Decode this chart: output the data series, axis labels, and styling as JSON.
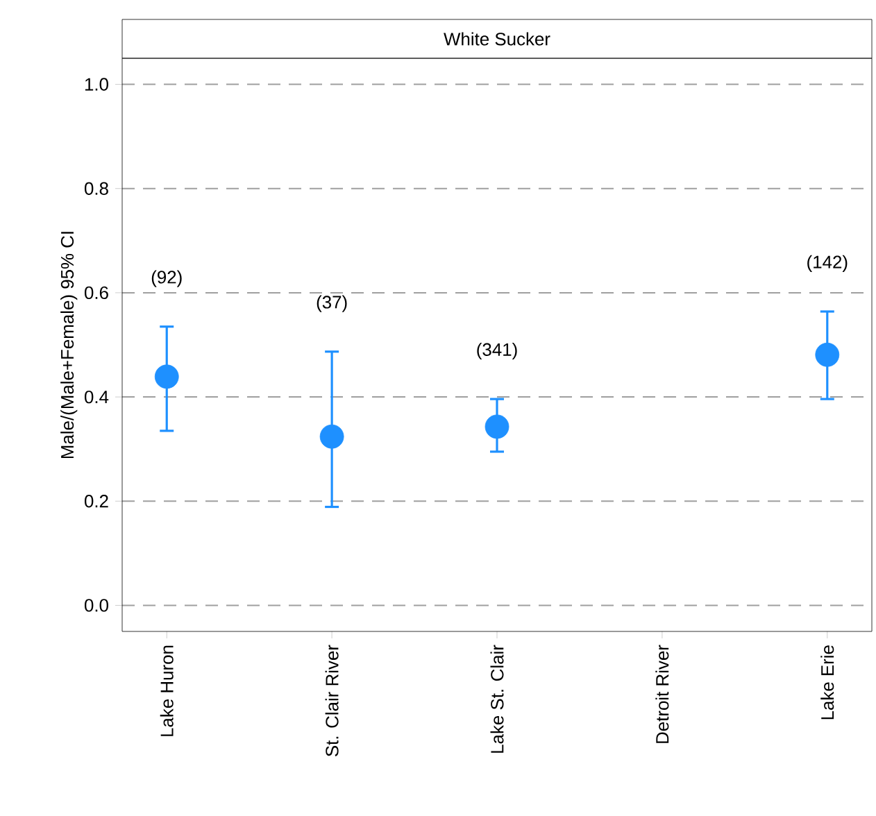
{
  "chart_data": {
    "type": "scatter",
    "title": "White Sucker",
    "ylabel": "Male/(Male+Female) 95% CI",
    "categories": [
      "Lake Huron",
      "St. Clair River",
      "Lake St. Clair",
      "Detroit River",
      "Lake Erie"
    ],
    "values": [
      0.439,
      0.324,
      0.343,
      null,
      0.481
    ],
    "errors": [
      [
        0.335,
        0.535
      ],
      [
        0.189,
        0.487
      ],
      [
        0.295,
        0.396
      ],
      null,
      [
        0.396,
        0.564
      ]
    ],
    "color": "#1e90ff",
    "marker": "circle",
    "grid": "y",
    "ylim": [
      -0.05,
      1.05
    ],
    "yticks": [
      {
        "value": 0,
        "label": "0.0"
      },
      {
        "value": 0.2,
        "label": "0.2"
      },
      {
        "value": 0.4,
        "label": "0.4"
      },
      {
        "value": 0.6,
        "label": "0.6"
      },
      {
        "value": 0.8,
        "label": "0.8"
      },
      {
        "value": 1,
        "label": "1.0"
      }
    ],
    "annotations": [
      "(92)",
      "(37)",
      "(341)",
      "(142)"
    ]
  }
}
